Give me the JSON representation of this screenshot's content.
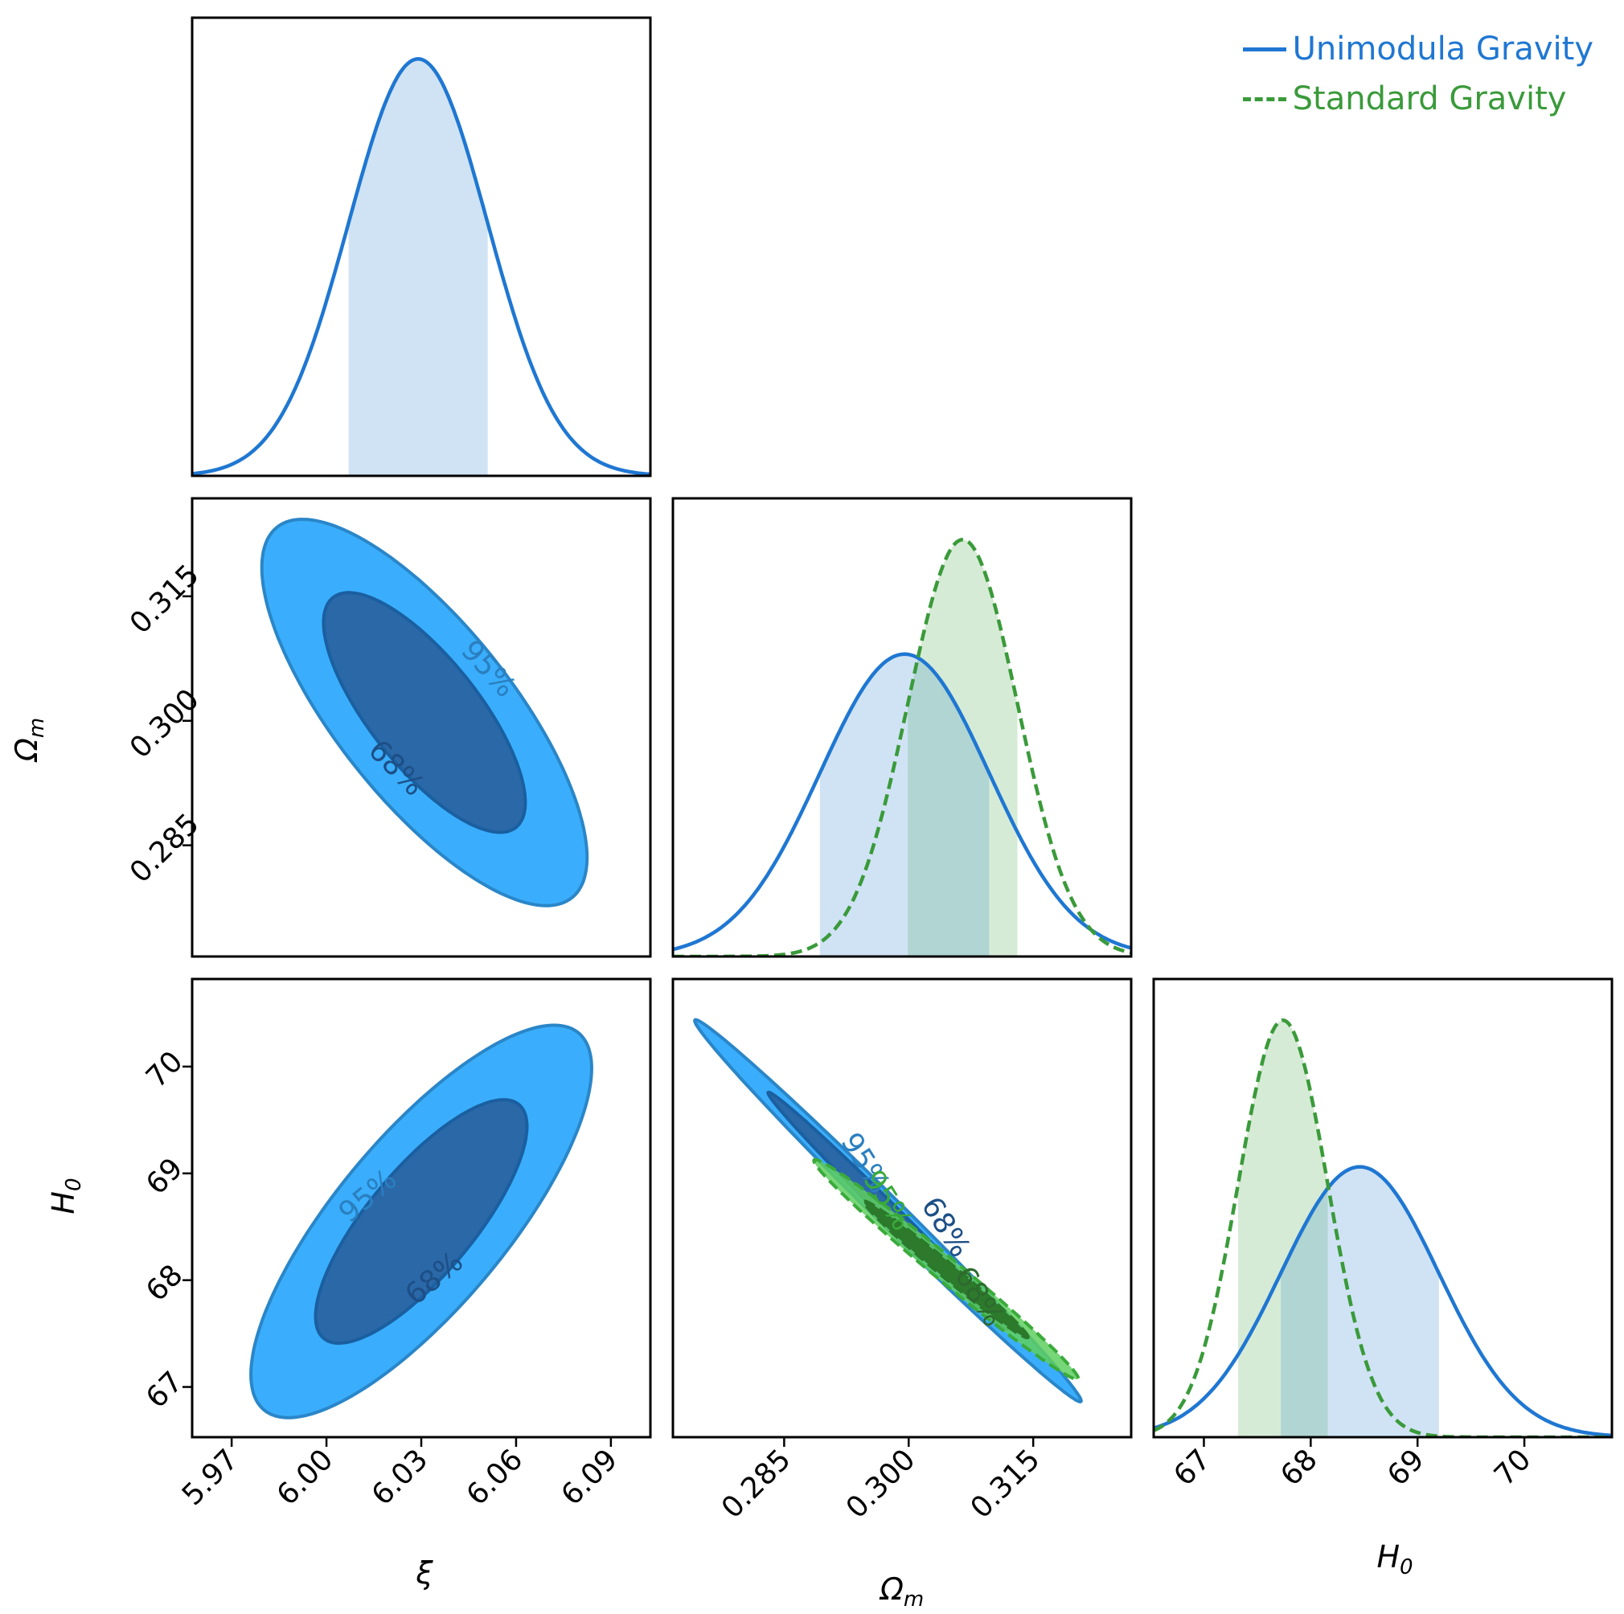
{
  "chart_data": {
    "type": "corner",
    "title": "",
    "parameters": [
      {
        "key": "xi",
        "label": "ξ",
        "range": [
          5.9575,
          6.1025
        ],
        "ticks": [
          "5.97",
          "6.00",
          "6.03",
          "6.06",
          "6.09"
        ]
      },
      {
        "key": "omega_m",
        "label": "Ωm",
        "label_main": "Ω",
        "label_sub": "m",
        "range": [
          0.2716,
          0.3268
        ],
        "ticks": [
          "0.285",
          "0.300",
          "0.315"
        ]
      },
      {
        "key": "H0",
        "label": "H0",
        "label_main": "H",
        "label_sub": "0",
        "range": [
          66.53,
          70.82
        ],
        "ticks": [
          "67",
          "68",
          "69",
          "70"
        ]
      }
    ],
    "series": [
      {
        "name": "Unimodula Gravity",
        "color": "#1f77d2",
        "line": "solid",
        "marginals": {
          "xi": {
            "mean": 6.029,
            "sigma": 0.022,
            "interval": [
              6.007,
              6.051
            ]
          },
          "omega_m": {
            "mean": 0.2995,
            "sigma": 0.0102,
            "interval": [
              0.2893,
              0.3097
            ]
          },
          "H0": {
            "mean": 68.46,
            "sigma": 0.74,
            "interval": [
              67.72,
              69.2
            ]
          }
        },
        "contours": {
          "xi_omega_m": {
            "center": [
              6.031,
              0.301
            ],
            "sd": [
              0.021,
              0.0095
            ],
            "rho": -0.75
          },
          "xi_H0": {
            "center": [
              6.03,
              68.55
            ],
            "sd": [
              0.022,
              0.75
            ],
            "rho": 0.78
          },
          "omega_m_H0": {
            "center": [
              0.2975,
              68.65
            ],
            "sd": [
              0.0095,
              0.73
            ],
            "rho": -0.995
          }
        }
      },
      {
        "name": "Standard Gravity",
        "color": "#3a9a3a",
        "line": "dashed",
        "marginals": {
          "omega_m": {
            "mean": 0.3065,
            "sigma": 0.0066,
            "interval": [
              0.2999,
              0.3131
            ]
          },
          "H0": {
            "mean": 67.74,
            "sigma": 0.42,
            "interval": [
              67.32,
              68.16
            ]
          }
        },
        "contours": {
          "omega_m_H0": {
            "center": [
              0.3045,
              68.1
            ],
            "sd": [
              0.0065,
              0.42
            ],
            "rho": -0.99
          }
        }
      }
    ],
    "contour_labels": [
      "68%",
      "95%"
    ],
    "legend": {
      "position": "top-right",
      "entries": [
        "Unimodula Gravity",
        "Standard Gravity"
      ]
    },
    "colors": {
      "blue_line": "#1f77d2",
      "blue_fill_light": "#3aaefc",
      "blue_fill_dark": "#2b68a8",
      "blue_shade": "#d0e3f4",
      "green_line": "#3a9a3a",
      "green_fill_light": "#5fcf5f",
      "green_fill_dark": "#2d7a2d",
      "green_shade": "#d6ebd6",
      "overlap_shade": "#b1d5d3"
    }
  }
}
